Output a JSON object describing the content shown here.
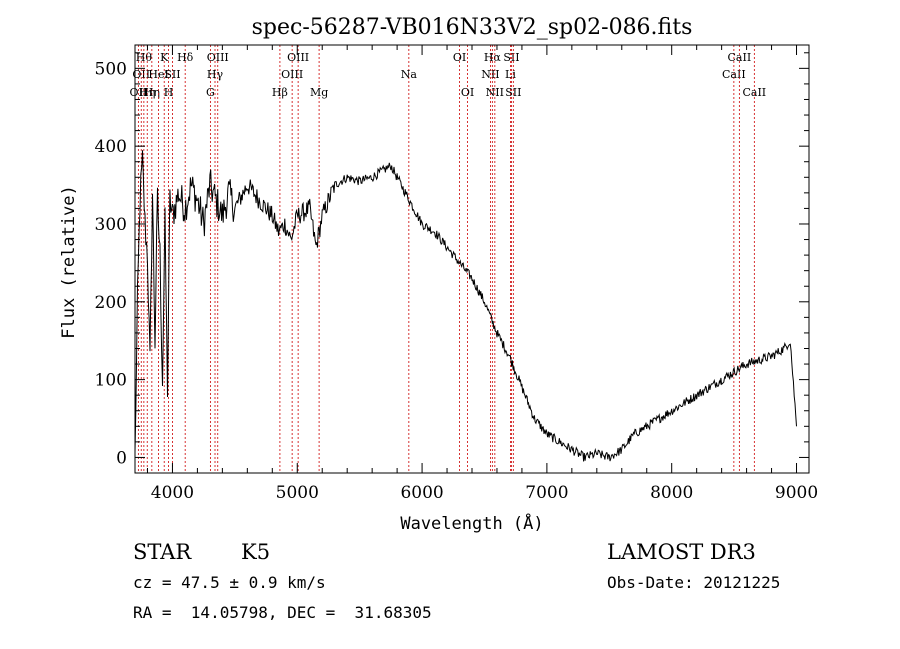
{
  "chart_data": {
    "type": "line",
    "title": "spec-56287-VB016N33V2_sp02-086.fits",
    "xlabel": "Wavelength (Å)",
    "ylabel": "Flux (relative)",
    "xlim": [
      3700,
      9100
    ],
    "ylim": [
      -20,
      530
    ],
    "xticks": [
      4000,
      5000,
      6000,
      7000,
      8000,
      9000
    ],
    "yticks": [
      0,
      100,
      200,
      300,
      400,
      500
    ],
    "xtick_labels": [
      "4000",
      "5000",
      "6000",
      "7000",
      "8000",
      "9000"
    ],
    "ytick_labels": [
      "0",
      "100",
      "200",
      "300",
      "400",
      "500"
    ],
    "grid": false,
    "series": [
      {
        "name": "flux",
        "x": [
          3700,
          3720,
          3740,
          3760,
          3780,
          3800,
          3820,
          3840,
          3860,
          3880,
          3900,
          3920,
          3940,
          3960,
          3980,
          4000,
          4050,
          4100,
          4150,
          4200,
          4250,
          4300,
          4350,
          4400,
          4450,
          4500,
          4600,
          4700,
          4800,
          4850,
          4900,
          4950,
          5000,
          5100,
          5150,
          5200,
          5300,
          5400,
          5500,
          5600,
          5700,
          5750,
          5800,
          5900,
          6000,
          6100,
          6200,
          6300,
          6400,
          6500,
          6550,
          6600,
          6700,
          6800,
          6900,
          7000,
          7100,
          7200,
          7300,
          7400,
          7500,
          7600,
          7700,
          7800,
          7900,
          8000,
          8100,
          8200,
          8300,
          8400,
          8500,
          8600,
          8700,
          8800,
          8900,
          8950,
          9000
        ],
        "values": [
          0,
          200,
          330,
          380,
          300,
          260,
          120,
          340,
          150,
          330,
          260,
          100,
          300,
          90,
          330,
          310,
          340,
          320,
          350,
          330,
          300,
          350,
          330,
          310,
          340,
          320,
          350,
          330,
          310,
          290,
          300,
          280,
          310,
          320,
          270,
          310,
          350,
          360,
          355,
          360,
          370,
          375,
          360,
          330,
          300,
          290,
          270,
          250,
          230,
          200,
          180,
          160,
          130,
          90,
          50,
          30,
          20,
          10,
          0,
          5,
          0,
          10,
          30,
          40,
          50,
          60,
          70,
          80,
          90,
          100,
          110,
          120,
          125,
          130,
          140,
          150,
          40
        ]
      }
    ],
    "line_markers": [
      {
        "wavelength": 3727,
        "label": "OII",
        "row": 3
      },
      {
        "wavelength": 3750,
        "label": "OII",
        "row": 2
      },
      {
        "wavelength": 3771,
        "label": "Hθ",
        "row": 1
      },
      {
        "wavelength": 3798,
        "label": "Hη",
        "row": 3
      },
      {
        "wavelength": 3835,
        "label": "Hη",
        "row": 3
      },
      {
        "wavelength": 3889,
        "label": "HeI",
        "row": 2
      },
      {
        "wavelength": 3934,
        "label": "K",
        "row": 1
      },
      {
        "wavelength": 3969,
        "label": "H",
        "row": 3
      },
      {
        "wavelength": 4000,
        "label": "SII",
        "row": 2
      },
      {
        "wavelength": 4102,
        "label": "Hδ",
        "row": 1
      },
      {
        "wavelength": 4304,
        "label": "G",
        "row": 3
      },
      {
        "wavelength": 4341,
        "label": "Hγ",
        "row": 2
      },
      {
        "wavelength": 4363,
        "label": "OIII",
        "row": 1
      },
      {
        "wavelength": 4861,
        "label": "Hβ",
        "row": 3
      },
      {
        "wavelength": 4959,
        "label": "OIII",
        "row": 2
      },
      {
        "wavelength": 5007,
        "label": "OIII",
        "row": 1
      },
      {
        "wavelength": 5175,
        "label": "Mg",
        "row": 3
      },
      {
        "wavelength": 5894,
        "label": "Na",
        "row": 2
      },
      {
        "wavelength": 6300,
        "label": "OI",
        "row": 1
      },
      {
        "wavelength": 6364,
        "label": "OI",
        "row": 3
      },
      {
        "wavelength": 6548,
        "label": "NII",
        "row": 2
      },
      {
        "wavelength": 6563,
        "label": "Hα",
        "row": 1
      },
      {
        "wavelength": 6583,
        "label": "NII",
        "row": 3
      },
      {
        "wavelength": 6708,
        "label": "Li",
        "row": 2
      },
      {
        "wavelength": 6716,
        "label": "SII",
        "row": 1
      },
      {
        "wavelength": 6731,
        "label": "SII",
        "row": 3
      },
      {
        "wavelength": 8498,
        "label": "CaII",
        "row": 2
      },
      {
        "wavelength": 8542,
        "label": "CaII",
        "row": 1
      },
      {
        "wavelength": 8662,
        "label": "CaII",
        "row": 3
      }
    ]
  },
  "info": {
    "object_type": "STAR",
    "subclass": "K5",
    "survey": "LAMOST DR3",
    "redshift": "cz = 47.5 ± 0.9 km/s",
    "obs_date": "Obs-Date: 20121225",
    "coords": "RA =  14.05798, DEC =  31.68305"
  },
  "colors": {
    "axis": "#000000",
    "spectrum": "#000000",
    "markers": "#cc0000"
  }
}
